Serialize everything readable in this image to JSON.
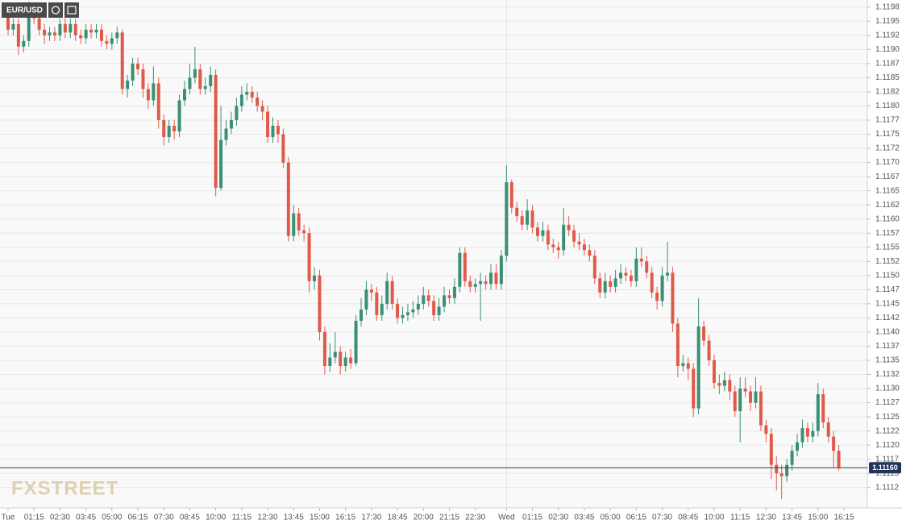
{
  "chart_data": {
    "type": "candlestick",
    "ticker": "EUR/USD",
    "watermark": "FXSTREET",
    "up_color": "#3a8f74",
    "down_color": "#e05a4a",
    "grid": true,
    "price_line": {
      "value": 1.1116,
      "label": "1.11160"
    },
    "ylim": [
      1.11089,
      1.119875
    ],
    "yticks": [
      {
        "value": 1.11975,
        "label": "1.1198"
      },
      1.1195,
      {
        "value": 1.11925,
        "label": "1.1192"
      },
      {
        "value": 1.119,
        "label": "1.1190"
      },
      {
        "value": 1.11875,
        "label": "1.1187"
      },
      1.1185,
      {
        "value": 1.11825,
        "label": "1.1182"
      },
      {
        "value": 1.118,
        "label": "1.1180"
      },
      {
        "value": 1.11775,
        "label": "1.1177"
      },
      1.1175,
      {
        "value": 1.11725,
        "label": "1.1172"
      },
      {
        "value": 1.117,
        "label": "1.1170"
      },
      {
        "value": 1.11675,
        "label": "1.1167"
      },
      1.1165,
      {
        "value": 1.11625,
        "label": "1.1162"
      },
      {
        "value": 1.116,
        "label": "1.1160"
      },
      {
        "value": 1.11575,
        "label": "1.1157"
      },
      1.1155,
      {
        "value": 1.11525,
        "label": "1.1152"
      },
      {
        "value": 1.115,
        "label": "1.1150"
      },
      {
        "value": 1.11475,
        "label": "1.1147"
      },
      1.1145,
      {
        "value": 1.11425,
        "label": "1.1142"
      },
      {
        "value": 1.114,
        "label": "1.1140"
      },
      {
        "value": 1.11375,
        "label": "1.1137"
      },
      1.1135,
      {
        "value": 1.11325,
        "label": "1.1132"
      },
      {
        "value": 1.113,
        "label": "1.1130"
      },
      {
        "value": 1.11275,
        "label": "1.1127"
      },
      1.1125,
      {
        "value": 1.11225,
        "label": "1.1122"
      },
      {
        "value": 1.112,
        "label": "1.1120"
      },
      {
        "value": 1.11175,
        "label": "1.1117"
      },
      1.1115,
      {
        "value": 1.11125,
        "label": "1.1112"
      }
    ],
    "categories": [
      "Tue",
      null,
      null,
      null,
      null,
      "01:15",
      null,
      null,
      null,
      null,
      "02:30",
      null,
      null,
      null,
      null,
      "03:45",
      null,
      null,
      null,
      null,
      "05:00",
      null,
      null,
      null,
      null,
      "06:15",
      null,
      null,
      null,
      null,
      "07:30",
      null,
      null,
      null,
      null,
      "08:45",
      null,
      null,
      null,
      null,
      "10:00",
      null,
      null,
      null,
      null,
      "11:15",
      null,
      null,
      null,
      null,
      "12:30",
      null,
      null,
      null,
      null,
      "13:45",
      null,
      null,
      null,
      null,
      "15:00",
      null,
      null,
      null,
      null,
      "16:15",
      null,
      null,
      null,
      null,
      "17:30",
      null,
      null,
      null,
      null,
      "18:45",
      null,
      null,
      null,
      null,
      "20:00",
      null,
      null,
      null,
      null,
      "21:15",
      null,
      null,
      null,
      null,
      "22:30",
      null,
      null,
      null,
      null,
      null,
      "Wed",
      null,
      null,
      null,
      null,
      "01:15",
      null,
      null,
      null,
      null,
      "02:30",
      null,
      null,
      null,
      null,
      "03:45",
      null,
      null,
      null,
      null,
      "05:00",
      null,
      null,
      null,
      null,
      "06:15",
      null,
      null,
      null,
      null,
      "07:30",
      null,
      null,
      null,
      null,
      "08:45",
      null,
      null,
      null,
      null,
      "10:00",
      null,
      null,
      null,
      null,
      "11:15",
      null,
      null,
      null,
      null,
      "12:30",
      null,
      null,
      null,
      null,
      "13:45",
      null,
      null,
      null,
      null,
      "15:00",
      null,
      null,
      null,
      null,
      "16:15"
    ],
    "open": [
      1.1196,
      1.11935,
      1.11945,
      1.11905,
      1.11915,
      1.11975,
      1.11955,
      1.11935,
      1.11925,
      1.1193,
      1.11925,
      1.11945,
      1.1193,
      1.11945,
      1.11925,
      1.1192,
      1.11935,
      1.1193,
      1.11935,
      1.11915,
      1.1191,
      1.1192,
      1.1193,
      1.1183,
      1.11845,
      1.11875,
      1.11865,
      1.1183,
      1.1181,
      1.1184,
      1.11775,
      1.11745,
      1.11765,
      1.11755,
      1.1181,
      1.1183,
      1.1185,
      1.11865,
      1.1183,
      1.11835,
      1.11855,
      1.11655,
      1.1174,
      1.1176,
      1.11775,
      1.118,
      1.1182,
      1.11825,
      1.11815,
      1.118,
      1.1179,
      1.11745,
      1.11765,
      1.1175,
      1.117,
      1.1157,
      1.1161,
      1.1158,
      1.11575,
      1.1149,
      1.115,
      1.114,
      1.1134,
      1.11355,
      1.11365,
      1.1134,
      1.11355,
      1.11345,
      1.1142,
      1.1144,
      1.11475,
      1.1147,
      1.1143,
      1.1145,
      1.1149,
      1.1145,
      1.11425,
      1.1143,
      1.11435,
      1.1144,
      1.1145,
      1.11465,
      1.11455,
      1.1143,
      1.11445,
      1.11465,
      1.1146,
      1.1148,
      1.1154,
      1.1149,
      1.1148,
      1.11485,
      1.1149,
      1.11485,
      1.11505,
      1.11485,
      1.11535,
      1.11665,
      1.1162,
      1.11605,
      1.1159,
      1.11615,
      1.11585,
      1.1157,
      1.1158,
      1.11555,
      1.1155,
      1.11545,
      1.1159,
      1.1158,
      1.1156,
      1.11555,
      1.11545,
      1.11535,
      1.11495,
      1.1147,
      1.1149,
      1.1148,
      1.11495,
      1.11505,
      1.115,
      1.1149,
      1.1153,
      1.11525,
      1.11505,
      1.1147,
      1.11455,
      1.115,
      1.11505,
      1.11415,
      1.1134,
      1.11345,
      1.11335,
      1.11265,
      1.1141,
      1.11385,
      1.1135,
      1.1131,
      1.11305,
      1.11315,
      1.11295,
      1.1126,
      1.113,
      1.11295,
      1.11275,
      1.11295,
      1.11235,
      1.1122,
      1.11165,
      1.1115,
      1.11145,
      1.11165,
      1.1119,
      1.11205,
      1.1123,
      1.11215,
      1.11225,
      1.1129,
      1.1124,
      1.11215,
      1.1119,
      null
    ],
    "high": [
      1.11975,
      1.11955,
      1.11955,
      1.11925,
      1.11985,
      1.1198,
      1.11965,
      1.11945,
      1.1194,
      1.1194,
      1.11955,
      1.11955,
      1.11955,
      1.11955,
      1.11935,
      1.11945,
      1.11945,
      1.11945,
      1.11945,
      1.11925,
      1.1193,
      1.1194,
      1.11935,
      1.11855,
      1.11885,
      1.11885,
      1.11875,
      1.1184,
      1.1187,
      1.1185,
      1.11785,
      1.11775,
      1.11775,
      1.1182,
      1.11845,
      1.11875,
      1.11905,
      1.11875,
      1.1185,
      1.1187,
      1.11865,
      1.118,
      1.11775,
      1.1179,
      1.11815,
      1.11835,
      1.1184,
      1.11835,
      1.11825,
      1.1181,
      1.118,
      1.1178,
      1.11775,
      1.1176,
      1.1171,
      1.11625,
      1.1162,
      1.1159,
      1.11585,
      1.11515,
      1.1151,
      1.1141,
      1.1138,
      1.114,
      1.11375,
      1.11365,
      1.1137,
      1.1143,
      1.1146,
      1.1149,
      1.11485,
      1.1148,
      1.11465,
      1.11505,
      1.115,
      1.1146,
      1.11445,
      1.1145,
      1.11455,
      1.11465,
      1.1148,
      1.11475,
      1.11465,
      1.1146,
      1.1148,
      1.11475,
      1.11495,
      1.1155,
      1.1155,
      1.115,
      1.11495,
      1.11505,
      1.115,
      1.1152,
      1.1152,
      1.11545,
      1.11695,
      1.1167,
      1.1163,
      1.11615,
      1.11635,
      1.11625,
      1.11595,
      1.11595,
      1.1159,
      1.11565,
      1.1156,
      1.1162,
      1.11605,
      1.1159,
      1.11575,
      1.11565,
      1.11555,
      1.11545,
      1.11505,
      1.11505,
      1.115,
      1.1151,
      1.1152,
      1.11515,
      1.1151,
      1.1155,
      1.1155,
      1.11535,
      1.11515,
      1.1148,
      1.11515,
      1.1156,
      1.11515,
      1.11425,
      1.1136,
      1.11355,
      1.11345,
      1.1146,
      1.1142,
      1.11395,
      1.1136,
      1.11325,
      1.1133,
      1.11325,
      1.11305,
      1.1132,
      1.1132,
      1.11305,
      1.1132,
      1.11305,
      1.11245,
      1.1123,
      1.1118,
      1.11165,
      1.11175,
      1.112,
      1.1122,
      1.11245,
      1.1124,
      1.1124,
      1.1131,
      1.113,
      1.1125,
      1.11225,
      1.112,
      null
    ],
    "low": [
      1.11925,
      1.11925,
      1.1189,
      1.11895,
      1.11905,
      1.11945,
      1.11925,
      1.1191,
      1.11915,
      1.11915,
      1.11915,
      1.1192,
      1.1192,
      1.11915,
      1.1191,
      1.1191,
      1.1192,
      1.1192,
      1.11905,
      1.119,
      1.119,
      1.1191,
      1.1182,
      1.11815,
      1.11835,
      1.11855,
      1.11815,
      1.11795,
      1.118,
      1.1176,
      1.1173,
      1.11735,
      1.1174,
      1.11745,
      1.118,
      1.1182,
      1.1184,
      1.1182,
      1.1182,
      1.11825,
      1.1164,
      1.1165,
      1.1173,
      1.1175,
      1.11765,
      1.1179,
      1.1181,
      1.11805,
      1.1179,
      1.11775,
      1.11735,
      1.11735,
      1.11735,
      1.1169,
      1.1156,
      1.1156,
      1.1157,
      1.1156,
      1.1147,
      1.11475,
      1.11385,
      1.11325,
      1.1133,
      1.11345,
      1.11325,
      1.1133,
      1.11335,
      1.1134,
      1.1141,
      1.1143,
      1.11455,
      1.1142,
      1.1142,
      1.1144,
      1.1144,
      1.11415,
      1.11415,
      1.1142,
      1.11425,
      1.1143,
      1.1144,
      1.11445,
      1.1142,
      1.1142,
      1.11435,
      1.1145,
      1.1145,
      1.1147,
      1.1148,
      1.1147,
      1.1147,
      1.1142,
      1.11475,
      1.11475,
      1.11475,
      1.11475,
      1.11525,
      1.1161,
      1.11595,
      1.1158,
      1.1158,
      1.11575,
      1.1156,
      1.1156,
      1.11545,
      1.1154,
      1.1153,
      1.11535,
      1.1157,
      1.1155,
      1.11545,
      1.11535,
      1.11525,
      1.11485,
      1.1146,
      1.1146,
      1.1147,
      1.1147,
      1.11485,
      1.1149,
      1.1148,
      1.1148,
      1.11515,
      1.11495,
      1.1146,
      1.1144,
      1.11445,
      1.1149,
      1.114,
      1.1132,
      1.1133,
      1.11315,
      1.1125,
      1.11255,
      1.11375,
      1.1134,
      1.113,
      1.1129,
      1.11295,
      1.1128,
      1.1125,
      1.11205,
      1.11285,
      1.1126,
      1.11265,
      1.11225,
      1.11205,
      1.1114,
      1.1112,
      1.11105,
      1.11135,
      1.11155,
      1.1118,
      1.11195,
      1.11205,
      1.11205,
      1.11215,
      1.1123,
      1.11205,
      1.1116,
      1.11155,
      null
    ],
    "close": [
      1.11935,
      1.11945,
      1.11905,
      1.11915,
      1.11975,
      1.11955,
      1.11935,
      1.11925,
      1.1193,
      1.11925,
      1.11945,
      1.1193,
      1.11945,
      1.11925,
      1.1192,
      1.11935,
      1.1193,
      1.11935,
      1.11915,
      1.1191,
      1.1192,
      1.1193,
      1.1183,
      1.11845,
      1.11875,
      1.11865,
      1.1183,
      1.1181,
      1.1184,
      1.11775,
      1.11745,
      1.11765,
      1.11755,
      1.1181,
      1.1183,
      1.1185,
      1.11865,
      1.1183,
      1.11835,
      1.11855,
      1.11655,
      1.1174,
      1.1176,
      1.11775,
      1.118,
      1.1182,
      1.11825,
      1.11815,
      1.118,
      1.1179,
      1.11745,
      1.11765,
      1.1175,
      1.117,
      1.1157,
      1.1161,
      1.1158,
      1.11575,
      1.1149,
      1.115,
      1.114,
      1.1134,
      1.11355,
      1.11365,
      1.1134,
      1.11355,
      1.11345,
      1.1142,
      1.1144,
      1.11475,
      1.1147,
      1.1143,
      1.1145,
      1.1149,
      1.1145,
      1.11425,
      1.1143,
      1.11435,
      1.1144,
      1.1145,
      1.11465,
      1.11455,
      1.1143,
      1.11445,
      1.11465,
      1.1146,
      1.1148,
      1.1154,
      1.1149,
      1.1148,
      1.11485,
      1.1149,
      1.11485,
      1.11505,
      1.11485,
      1.11535,
      1.11665,
      1.1162,
      1.11605,
      1.1159,
      1.11615,
      1.11585,
      1.1157,
      1.1158,
      1.11555,
      1.1155,
      1.11545,
      1.1159,
      1.1158,
      1.1156,
      1.11555,
      1.11545,
      1.11535,
      1.11495,
      1.1147,
      1.1149,
      1.1148,
      1.11495,
      1.11505,
      1.115,
      1.1149,
      1.1153,
      1.11525,
      1.11505,
      1.1147,
      1.11455,
      1.115,
      1.11505,
      1.11415,
      1.1134,
      1.11345,
      1.11335,
      1.11265,
      1.1141,
      1.11385,
      1.1135,
      1.1131,
      1.11305,
      1.11315,
      1.11295,
      1.1126,
      1.113,
      1.11295,
      1.11275,
      1.11295,
      1.11235,
      1.1122,
      1.11165,
      1.1115,
      1.11145,
      1.11165,
      1.1119,
      1.11205,
      1.1123,
      1.11215,
      1.11225,
      1.1129,
      1.1124,
      1.11215,
      1.1119,
      1.1116,
      null
    ]
  }
}
